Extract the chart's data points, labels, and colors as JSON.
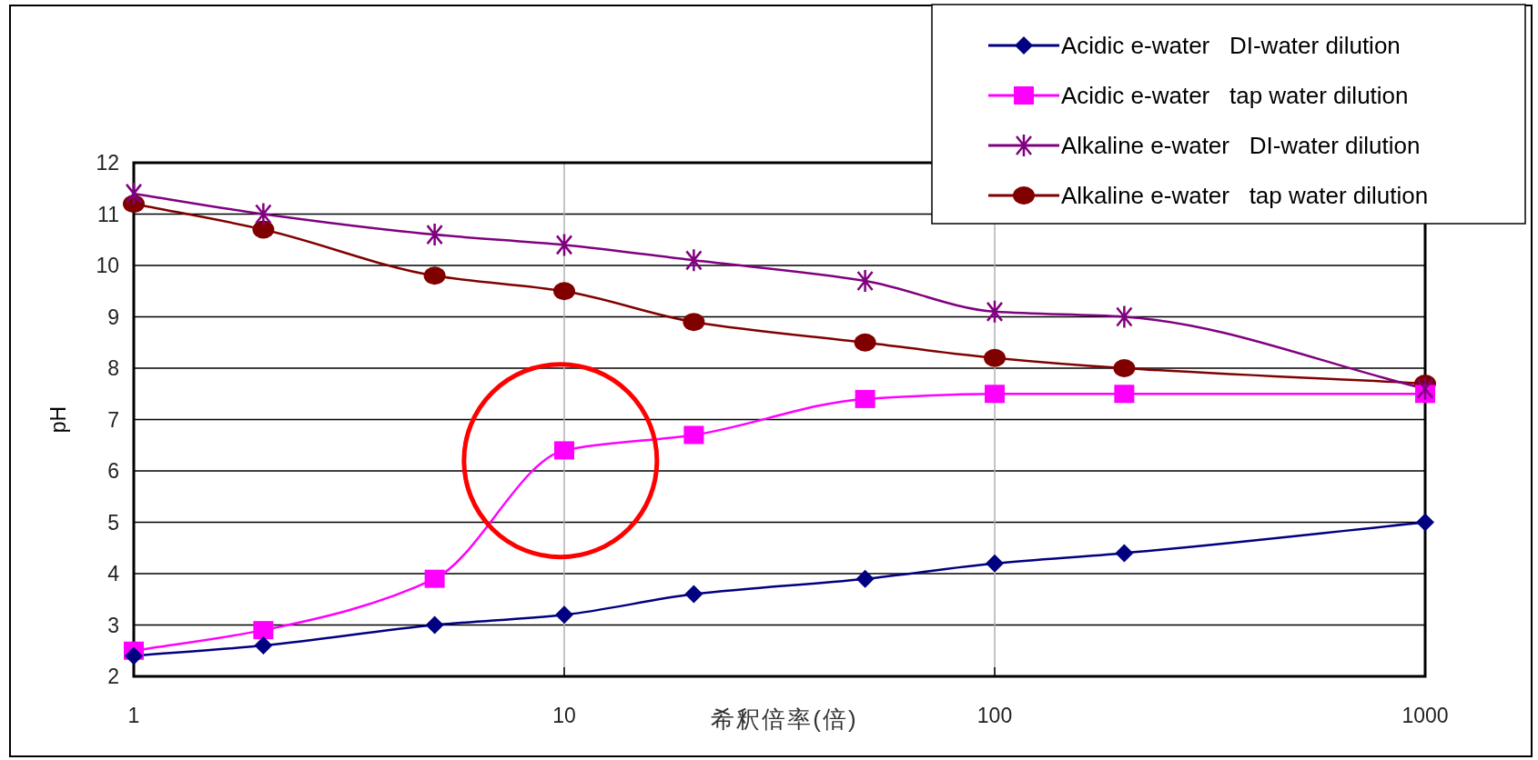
{
  "chart_data": {
    "type": "line",
    "xlabel": "希釈倍率(倍)",
    "ylabel": "pH",
    "log": "x",
    "grid": true,
    "legend": "top right",
    "x": [
      1,
      2,
      5,
      10,
      20,
      50,
      100,
      200,
      1000
    ],
    "xlim": [
      1,
      1000
    ],
    "xticks": [
      1,
      10,
      100,
      1000
    ],
    "ylim": [
      2,
      12
    ],
    "yticks": [
      2,
      3,
      4,
      5,
      6,
      7,
      8,
      9,
      10,
      11,
      12
    ],
    "series": [
      {
        "name": "Acidic e-water   DI-water dilution",
        "color": "#000080",
        "marker": "diamond",
        "values": [
          2.4,
          2.6,
          3.0,
          3.2,
          3.6,
          3.9,
          4.2,
          4.4,
          5.0
        ]
      },
      {
        "name": "Acidic e-water   tap water dilution",
        "color": "#ff00ff",
        "marker": "square",
        "values": [
          2.5,
          2.9,
          3.9,
          6.4,
          6.7,
          7.4,
          7.5,
          7.5,
          7.5
        ]
      },
      {
        "name": "Alkaline e-water   DI-water dilution",
        "color": "#800080",
        "marker": "cross",
        "values": [
          11.4,
          11.0,
          10.6,
          10.4,
          10.1,
          9.7,
          9.1,
          9.0,
          7.6
        ]
      },
      {
        "name": "Alkaline e-water   tap water dilution",
        "color": "#800000",
        "marker": "circle",
        "values": [
          11.2,
          10.7,
          9.8,
          9.5,
          8.9,
          8.5,
          8.2,
          8.0,
          7.7
        ]
      }
    ]
  }
}
